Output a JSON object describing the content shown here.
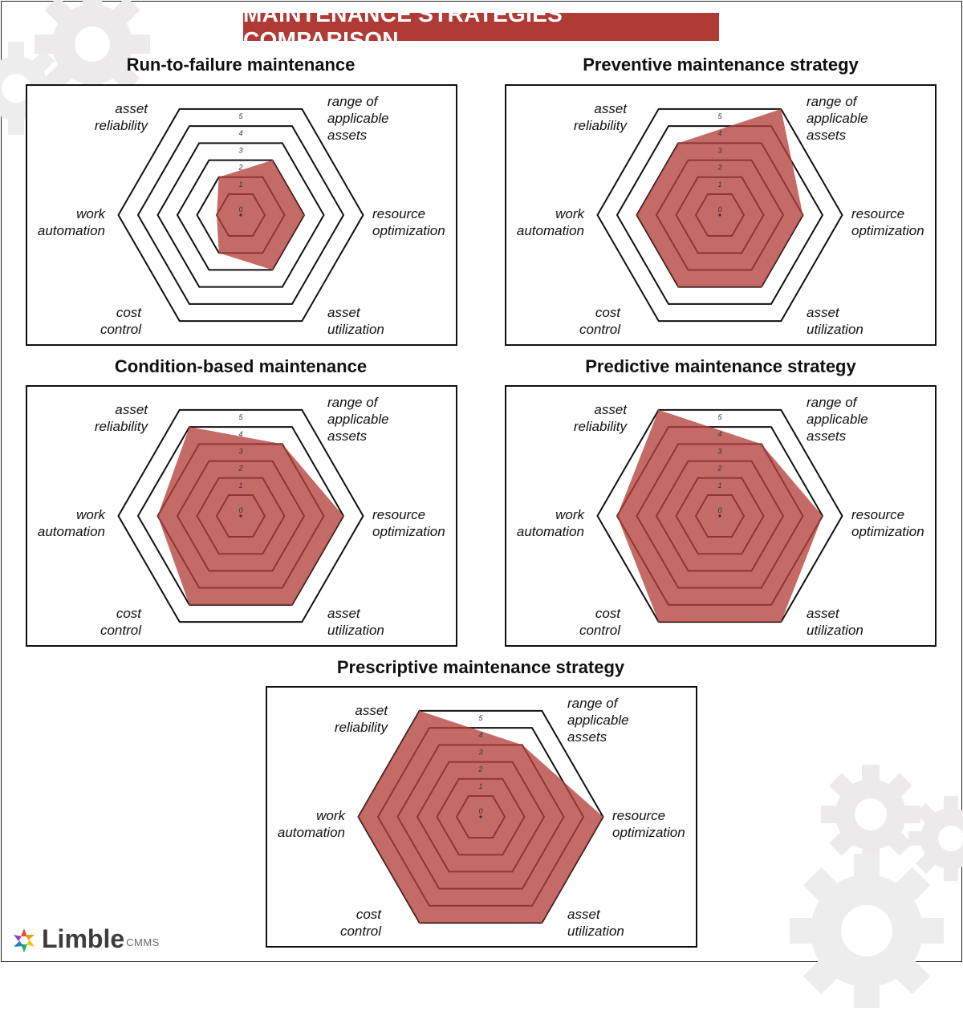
{
  "title": "MAINTENANCE STRATEGIES COMPARISON",
  "axes": [
    "range of applicable assets",
    "resource optimization",
    "asset utilization",
    "cost control",
    "work automation",
    "asset reliability"
  ],
  "axis_labels": {
    "range": [
      "range of",
      "applicable",
      "assets"
    ],
    "resource": [
      "resource",
      "optimization"
    ],
    "utilization": [
      "asset",
      "utilization"
    ],
    "cost": [
      "cost",
      "control"
    ],
    "automation": [
      "work",
      "automation"
    ],
    "reliability": [
      "asset",
      "reliability"
    ]
  },
  "ring_labels": [
    "0",
    "1",
    "2",
    "3",
    "4",
    "5"
  ],
  "colors": {
    "accent": "#b03a34",
    "fill": "#b5413c",
    "ring": "#111111"
  },
  "logo": {
    "name": "Limble",
    "sub": "CMMS"
  },
  "chart_data": [
    {
      "type": "radar",
      "title": "Run-to-failure maintenance",
      "rlim": [
        0,
        5
      ],
      "axes": [
        "range of applicable assets",
        "resource optimization",
        "asset utilization",
        "cost control",
        "work automation",
        "asset reliability"
      ],
      "values": [
        2,
        2,
        2,
        1,
        0,
        1
      ]
    },
    {
      "type": "radar",
      "title": "Preventive maintenance strategy",
      "rlim": [
        0,
        5
      ],
      "axes": [
        "range of applicable assets",
        "resource optimization",
        "asset utilization",
        "cost control",
        "work automation",
        "asset reliability"
      ],
      "values": [
        5,
        3,
        3,
        3,
        3,
        3
      ]
    },
    {
      "type": "radar",
      "title": "Condition-based maintenance",
      "rlim": [
        0,
        5
      ],
      "axes": [
        "range of applicable assets",
        "resource optimization",
        "asset utilization",
        "cost control",
        "work automation",
        "asset reliability"
      ],
      "values": [
        3,
        4,
        4,
        4,
        3,
        4
      ]
    },
    {
      "type": "radar",
      "title": "Predictive maintenance strategy",
      "rlim": [
        0,
        5
      ],
      "axes": [
        "range of applicable assets",
        "resource optimization",
        "asset utilization",
        "cost control",
        "work automation",
        "asset reliability"
      ],
      "values": [
        3,
        4,
        5,
        5,
        4,
        5
      ]
    },
    {
      "type": "radar",
      "title": "Prescriptive maintenance strategy",
      "rlim": [
        0,
        5
      ],
      "axes": [
        "range of applicable assets",
        "resource optimization",
        "asset utilization",
        "cost control",
        "work automation",
        "asset reliability"
      ],
      "values": [
        3,
        5,
        5,
        5,
        5,
        5
      ]
    }
  ]
}
